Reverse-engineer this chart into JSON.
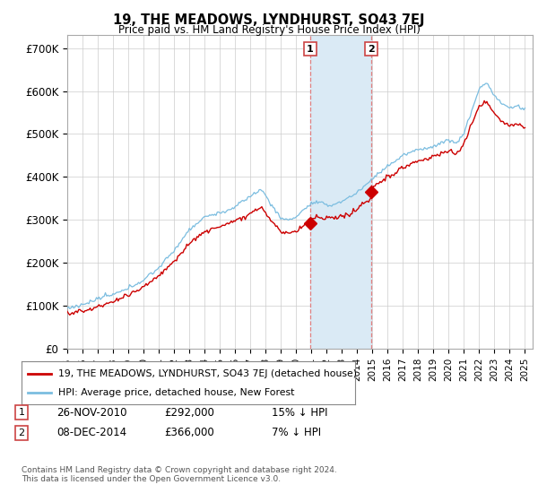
{
  "title": "19, THE MEADOWS, LYNDHURST, SO43 7EJ",
  "subtitle": "Price paid vs. HM Land Registry's House Price Index (HPI)",
  "ylabel_ticks": [
    "£0",
    "£100K",
    "£200K",
    "£300K",
    "£400K",
    "£500K",
    "£600K",
    "£700K"
  ],
  "ytick_values": [
    0,
    100000,
    200000,
    300000,
    400000,
    500000,
    600000,
    700000
  ],
  "ylim": [
    0,
    730000
  ],
  "xlim_start": 1995.0,
  "xlim_end": 2025.5,
  "hpi_color": "#7bbde0",
  "price_color": "#cc0000",
  "sale1_x": 2010.917,
  "sale1_y": 292000,
  "sale2_x": 2014.917,
  "sale2_y": 366000,
  "highlight_x_start": 2010.917,
  "highlight_x_end": 2014.917,
  "highlight_color": "#daeaf5",
  "dashed_line_color": "#e08080",
  "legend_line1": "19, THE MEADOWS, LYNDHURST, SO43 7EJ (detached house)",
  "legend_line2": "HPI: Average price, detached house, New Forest",
  "table_row1_num": "1",
  "table_row1_date": "26-NOV-2010",
  "table_row1_price": "£292,000",
  "table_row1_hpi": "15% ↓ HPI",
  "table_row2_num": "2",
  "table_row2_date": "08-DEC-2014",
  "table_row2_price": "£366,000",
  "table_row2_hpi": "7% ↓ HPI",
  "footer": "Contains HM Land Registry data © Crown copyright and database right 2024.\nThis data is licensed under the Open Government Licence v3.0.",
  "background_color": "#ffffff",
  "grid_color": "#cccccc"
}
